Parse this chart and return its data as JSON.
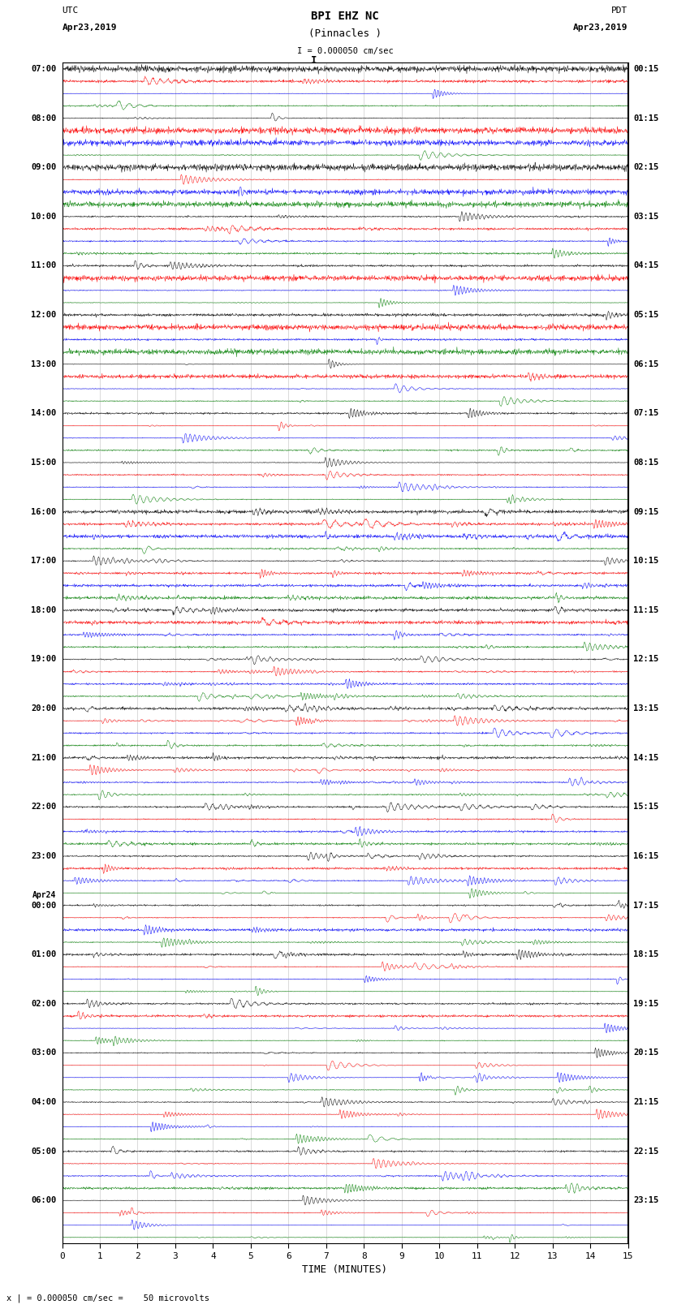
{
  "title_line1": "BPI EHZ NC",
  "title_line2": "(Pinnacles )",
  "scale_label": "I = 0.000050 cm/sec",
  "left_label_top": "UTC",
  "left_label_date": "Apr23,2019",
  "right_label_top": "PDT",
  "right_label_date": "Apr23,2019",
  "bottom_label": "TIME (MINUTES)",
  "bottom_note": "x | = 0.000050 cm/sec =    50 microvolts",
  "trace_colors_cycle": [
    "black",
    "red",
    "blue",
    "green"
  ],
  "x_ticks": [
    0,
    1,
    2,
    3,
    4,
    5,
    6,
    7,
    8,
    9,
    10,
    11,
    12,
    13,
    14,
    15
  ],
  "background_color": "white",
  "grid_color": "#cccccc",
  "fig_width": 8.5,
  "fig_height": 16.13,
  "dpi": 100,
  "left_time_labels_show": [
    [
      "07:00",
      0
    ],
    [
      "08:00",
      4
    ],
    [
      "09:00",
      8
    ],
    [
      "10:00",
      12
    ],
    [
      "11:00",
      16
    ],
    [
      "12:00",
      20
    ],
    [
      "13:00",
      24
    ],
    [
      "14:00",
      28
    ],
    [
      "15:00",
      32
    ],
    [
      "16:00",
      36
    ],
    [
      "17:00",
      40
    ],
    [
      "18:00",
      44
    ],
    [
      "19:00",
      48
    ],
    [
      "20:00",
      52
    ],
    [
      "21:00",
      56
    ],
    [
      "22:00",
      60
    ],
    [
      "23:00",
      64
    ],
    [
      "Apr24",
      68
    ],
    [
      "00:00",
      68
    ],
    [
      "01:00",
      72
    ],
    [
      "02:00",
      76
    ],
    [
      "03:00",
      80
    ],
    [
      "04:00",
      84
    ],
    [
      "05:00",
      88
    ],
    [
      "06:00",
      92
    ]
  ],
  "right_time_labels_show": [
    [
      "00:15",
      0
    ],
    [
      "01:15",
      4
    ],
    [
      "02:15",
      8
    ],
    [
      "03:15",
      12
    ],
    [
      "04:15",
      16
    ],
    [
      "05:15",
      20
    ],
    [
      "06:15",
      24
    ],
    [
      "07:15",
      28
    ],
    [
      "08:15",
      32
    ],
    [
      "09:15",
      36
    ],
    [
      "10:15",
      40
    ],
    [
      "11:15",
      44
    ],
    [
      "12:15",
      48
    ],
    [
      "13:15",
      52
    ],
    [
      "14:15",
      56
    ],
    [
      "15:15",
      60
    ],
    [
      "16:15",
      64
    ],
    [
      "17:15",
      68
    ],
    [
      "18:15",
      72
    ],
    [
      "19:15",
      76
    ],
    [
      "20:15",
      80
    ],
    [
      "21:15",
      84
    ],
    [
      "22:15",
      88
    ],
    [
      "23:15",
      92
    ]
  ],
  "num_traces": 96,
  "high_activity_traces": [
    36,
    37,
    38,
    39,
    40,
    41,
    42,
    43,
    44,
    45,
    46,
    47,
    48,
    49,
    50,
    51,
    52,
    53,
    54,
    55,
    56,
    57,
    58,
    59,
    60,
    61,
    62
  ],
  "very_high_activity_traces": [
    48,
    52,
    56,
    57,
    58
  ]
}
